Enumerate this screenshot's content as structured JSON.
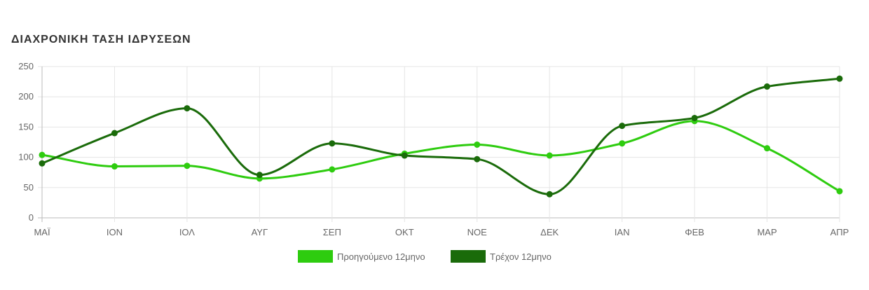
{
  "page": {
    "title": "ΔΙΑΧΡΟΝΙΚΗ ΤΑΣΗ ΙΔΡΥΣΕΩΝ"
  },
  "chart_data": {
    "type": "line",
    "title": "ΔΙΑΧΡΟΝΙΚΗ ΤΑΣΗ ΙΔΡΥΣΕΩΝ",
    "xlabel": "",
    "ylabel": "",
    "categories": [
      "ΜΑΪ",
      "ΙΟΝ",
      "ΙΟΛ",
      "ΑΥΓ",
      "ΣΕΠ",
      "ΟΚΤ",
      "ΝΟΕ",
      "ΔΕΚ",
      "ΙΑΝ",
      "ΦΕΒ",
      "ΜΑΡ",
      "ΑΠΡ"
    ],
    "ylim": [
      0,
      250
    ],
    "yticks": [
      0,
      50,
      100,
      150,
      200,
      250
    ],
    "grid": true,
    "legend_position": "bottom",
    "series": [
      {
        "name": "Προηγούμενο 12μηνο",
        "color": "#2ecc0f",
        "values": [
          104,
          85,
          86,
          65,
          80,
          106,
          121,
          103,
          123,
          160,
          115,
          44
        ]
      },
      {
        "name": "Τρέχον 12μηνο",
        "color": "#1a6b0a",
        "values": [
          90,
          140,
          181,
          71,
          123,
          103,
          97,
          39,
          152,
          165,
          217,
          230
        ]
      }
    ]
  }
}
